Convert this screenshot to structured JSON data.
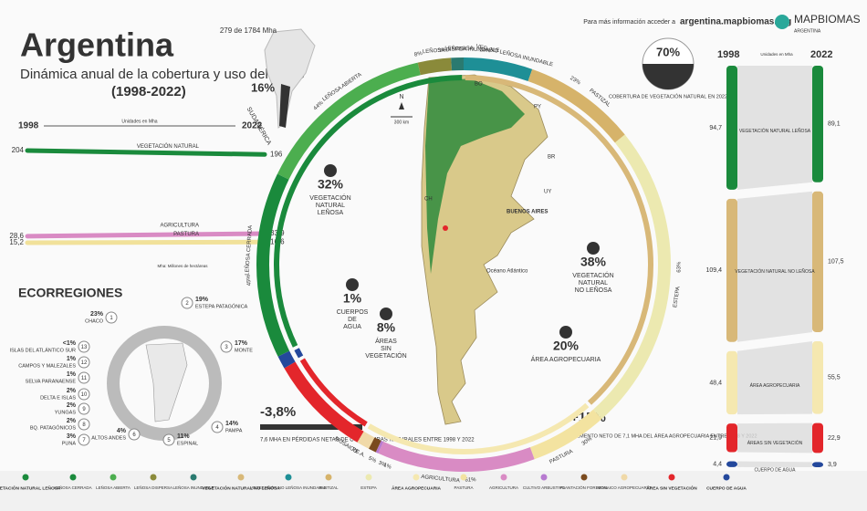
{
  "header": {
    "title": "Argentina",
    "subtitle": "Dinámica anual de la cobertura y uso del suelo",
    "period": "(1998-2022)"
  },
  "source": {
    "text": "Para más información acceder a",
    "url": "argentina.mapbiomas.org",
    "brand": "MAPBIOMAS",
    "country": "ARGENTINA"
  },
  "trend": {
    "start": "1998",
    "end": "2022",
    "units": "Unidades en Mha",
    "note": "Mha: Millones de hectáreas",
    "series": [
      {
        "name": "VEGETACIÓN NATURAL",
        "color": "#1a8a3c",
        "values": [
          204,
          196
        ],
        "value_labels": [
          "204",
          "196"
        ]
      },
      {
        "name": "AGRICULTURA",
        "color": "#d98bc4",
        "values": [
          28.6,
          33.9
        ],
        "value_labels": [
          "28,6",
          "33,9"
        ]
      },
      {
        "name": "PASTURA",
        "color": "#f1e19a",
        "values": [
          15.2,
          16.6
        ],
        "value_labels": [
          "15,2",
          "16,6"
        ]
      }
    ]
  },
  "south_america": {
    "area": "279 de 1784 Mha",
    "share": "16%",
    "label": "SUDAMÉRICA"
  },
  "ecoregions": {
    "title": "ECORREGIONES",
    "items": [
      {
        "number": "1",
        "name": "CHACO",
        "share": "23%"
      },
      {
        "number": "2",
        "name": "ESTEPA PATAGÓNICA",
        "share": "19%"
      },
      {
        "number": "3",
        "name": "MONTE",
        "share": "17%"
      },
      {
        "number": "4",
        "name": "PAMPA",
        "share": "14%"
      },
      {
        "number": "5",
        "name": "ESPINAL",
        "share": "11%"
      },
      {
        "number": "6",
        "name": "ALTOS ANDES",
        "share": "4%"
      },
      {
        "number": "7",
        "name": "PUNA",
        "share": "3%"
      },
      {
        "number": "8",
        "name": "BQ. PATAGÓNICOS",
        "share": "2%"
      },
      {
        "number": "9",
        "name": "YUNGAS",
        "share": "2%"
      },
      {
        "number": "10",
        "name": "DELTA E ISLAS",
        "share": "2%"
      },
      {
        "number": "11",
        "name": "SELVA PARANAENSE",
        "share": "1%"
      },
      {
        "number": "12",
        "name": "CAMPOS Y MALEZALES",
        "share": "1%"
      },
      {
        "number": "13",
        "name": "ISLAS DEL ATLÁNTICO SUR",
        "share": "<1%"
      }
    ]
  },
  "cover": {
    "natural_share": "70%",
    "natural_label": "COBERTURA DE VEGETACIÓN NATURAL EN 2022",
    "classes": [
      {
        "name": "VEGETACIÓN NATURAL LEÑOSA",
        "legend_name": "VEGETACIÓN NATURAL LEÑOSA",
        "value": 32,
        "value_label": "32%",
        "color": "#1a8a3c",
        "subclasses": [
          {
            "name": "LEÑOSA CERRADA",
            "legend_name": "LEÑOSA CERRADA",
            "value": 45,
            "value_label": "45%",
            "color": "#1a8a3c"
          },
          {
            "name": "LEÑOSA ABIERTA",
            "legend_name": "LEÑOSA ABIERTA",
            "value": 44,
            "value_label": "44%",
            "color": "#4cae4f"
          },
          {
            "name": "LEÑOSA DISPERSA",
            "legend_name": "LEÑOSA DISPERSA",
            "value": 8,
            "value_label": "8%",
            "color": "#8a8a3a"
          },
          {
            "name": "LEÑOSA INUNDABLE",
            "legend_name": "LEÑOSA INUNDABLE",
            "value": 3,
            "value_label": "3%",
            "color": "#2a7a70"
          }
        ]
      },
      {
        "name": "VEGETACIÓN NATURAL NO LEÑOSA",
        "legend_name": "VEGETACIÓN NATURAL NO LEÑOSA",
        "value": 38,
        "value_label": "38%",
        "color": "#d8b878",
        "subclasses": [
          {
            "name": "VEG. NO LEÑOSA INUNDABLE",
            "legend_name": "VEGETACIÓN NO LEÑOSA INUNDABLE",
            "value": 14,
            "value_label": "14%",
            "color": "#1e8f96"
          },
          {
            "name": "PASTIZAL",
            "legend_name": "PASTIZAL",
            "value": 23,
            "value_label": "23%",
            "color": "#d6b36a"
          },
          {
            "name": "ESTEPA",
            "legend_name": "ESTEPA",
            "value": 63,
            "value_label": "63%",
            "color": "#ece9b0"
          }
        ]
      },
      {
        "name": "ÁREA AGROPECUARIA",
        "legend_name": "ÁREA AGROPECUARIA",
        "value": 20,
        "value_label": "20%",
        "color": "#f5e8b0",
        "subclasses": [
          {
            "name": "PASTURA",
            "legend_name": "PASTURA",
            "value": 30,
            "value_label": "30%",
            "color": "#f3e3a0"
          },
          {
            "name": "AGRICULTURA",
            "legend_name": "AGRICULTURA",
            "value": 61,
            "value_label": "61%",
            "color": "#d98bc4"
          },
          {
            "name": "C.A.",
            "legend_name": "CULTIVO ARBUSTIVO",
            "value": 1,
            "value_label": "1%",
            "color": "#b77ad0"
          },
          {
            "name": "PF",
            "legend_name": "PLANTACIÓN FORESTAL",
            "value": 3,
            "value_label": "3%",
            "color": "#7a4a1e"
          },
          {
            "name": "MOSAICO",
            "legend_name": "MOSAICO AGROPECUARIO",
            "value": 5,
            "value_label": "5%",
            "color": "#f0d9a8"
          }
        ]
      },
      {
        "name": "ÁREAS SIN VEGETACIÓN",
        "legend_name": "ÁREA SIN VEGETACIÓN",
        "value": 8,
        "value_label": "8%",
        "color": "#e3262b"
      },
      {
        "name": "CUERPOS DE AGUA",
        "legend_name": "CUERPO DE AGUA",
        "value": 1,
        "value_label": "1%",
        "color": "#24489c"
      }
    ]
  },
  "map_labels": {
    "bo": "BO",
    "py": "PY",
    "br": "BR",
    "uy": "UY",
    "ch": "CH",
    "ba": "BUENOS AIRES",
    "ocean": "Océano Atlántico",
    "north": "N",
    "scale": "300 km"
  },
  "highlights": [
    {
      "value": "-3,8%",
      "text": "7,6 MHA EN PÉRDIDAS NETAS DE COBERTURAS NATURALES ENTRE 1998 Y 2022"
    },
    {
      "value": "+15%",
      "text": "INCREMENTO NETO DE 7,1 MHA DEL ÁREA AGROPECUARIA ENTRE 1998 Y 2022"
    }
  ],
  "transitions": {
    "start": "1998",
    "end": "2022",
    "units": "Unidades en Mha",
    "rows": [
      {
        "name": "VEGETACIÓN NATURAL LEÑOSA",
        "values": [
          94.7,
          89.1
        ],
        "value_labels": [
          "94,7",
          "89,1"
        ]
      },
      {
        "name": "VEGETACIÓN NATURAL NO LEÑOSA",
        "values": [
          109.4,
          107.5
        ],
        "value_labels": [
          "109,4",
          "107,5"
        ]
      },
      {
        "name": "ÁREA AGROPECUARIA",
        "values": [
          48.4,
          55.5
        ],
        "value_labels": [
          "48,4",
          "55,5"
        ]
      },
      {
        "name": "ÁREAS SIN VEGETACIÓN",
        "values": [
          21.9,
          22.9
        ],
        "value_labels": [
          "21,9",
          "22,9"
        ]
      },
      {
        "name": "CUERPO DE AGUA",
        "values": [
          4.4,
          3.9
        ],
        "value_labels": [
          "4,4",
          "3,9"
        ]
      }
    ]
  }
}
